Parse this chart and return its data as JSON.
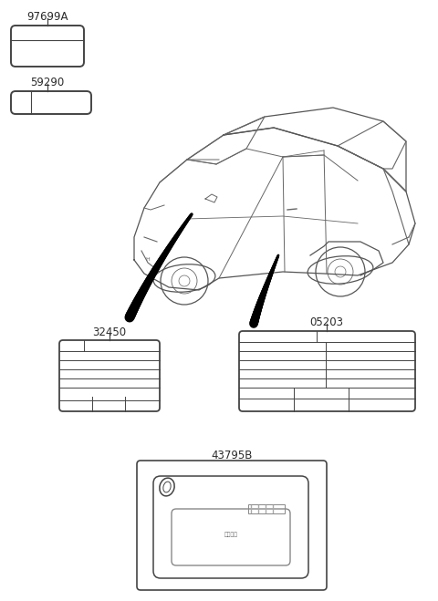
{
  "bg_color": "#ffffff",
  "label_97699A": "97699A",
  "label_59290": "59290",
  "label_32450": "32450",
  "label_05203": "05203",
  "label_43795B": "43795B",
  "text_color": "#2a2a2a",
  "line_color": "#444444",
  "car_color": "#555555",
  "arrow_color": "#111111",
  "font_size_label": 8.5
}
